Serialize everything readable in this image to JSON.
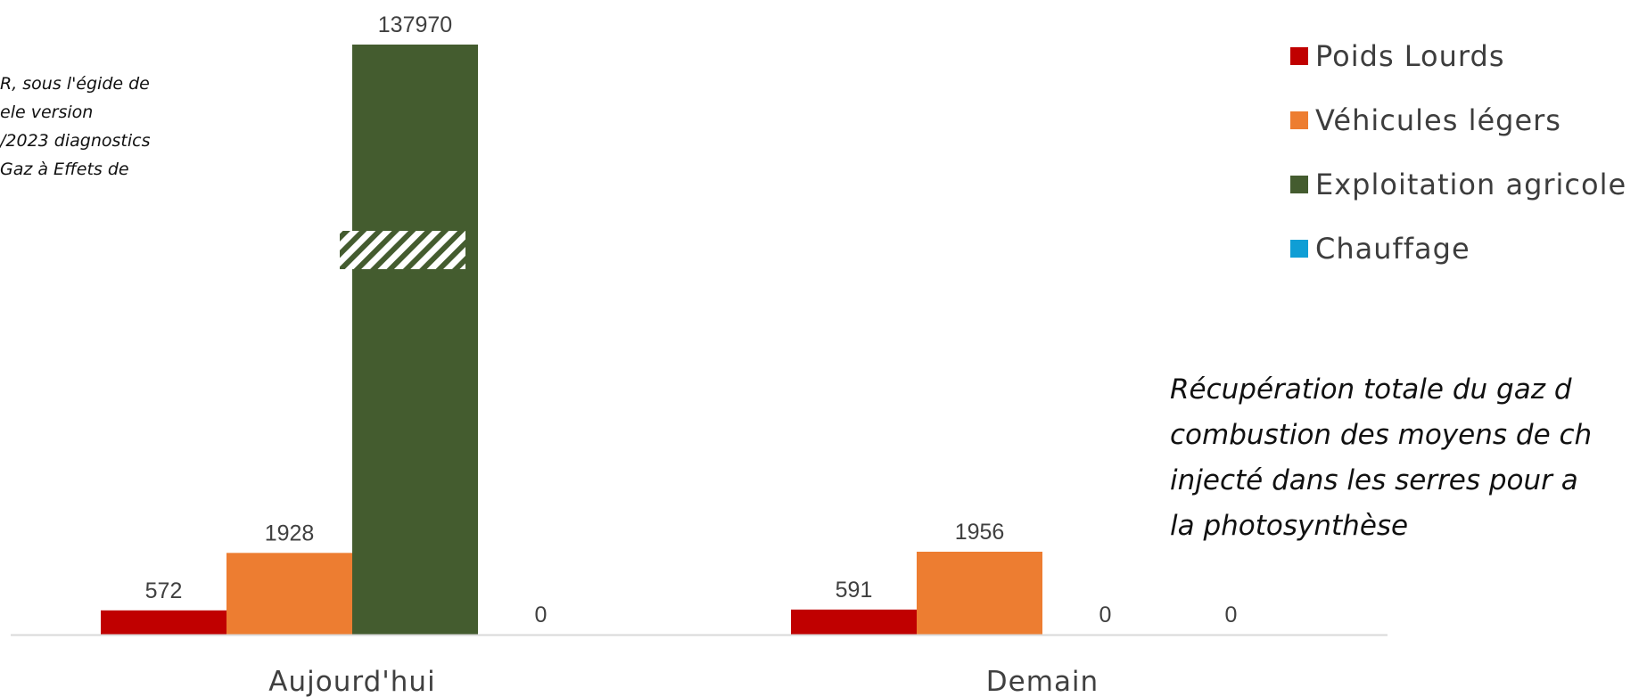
{
  "notes": {
    "left_lines": [
      "R, sous l'égide de",
      "ele version",
      "/2023 diagnostics",
      "Gaz à Effets de"
    ],
    "right_lines": [
      "Récupération totale du gaz d",
      "combustion des moyens de ch",
      "injecté dans les serres pour a",
      "la photosynthèse"
    ]
  },
  "chart_data": {
    "type": "bar",
    "categories": [
      "Aujourd'hui",
      "Demain"
    ],
    "series": [
      {
        "name": "Poids Lourds",
        "color": "#c00000",
        "values": [
          572,
          591
        ]
      },
      {
        "name": "Véhicules légers",
        "color": "#ed7d31",
        "values": [
          1928,
          1956
        ]
      },
      {
        "name": "Exploitation agricole",
        "color": "#445c2f",
        "values": [
          137970,
          0
        ]
      },
      {
        "name": "Chauffage",
        "color": "#0f9ed5",
        "values": [
          0,
          0
        ]
      }
    ],
    "data_labels": [
      [
        "572",
        "1928",
        "137970",
        "0"
      ],
      [
        "591",
        "1956",
        "0",
        "0"
      ]
    ],
    "axis_break": {
      "category_index": 0,
      "series_index": 2
    },
    "legend_position": "right",
    "grid": false
  }
}
